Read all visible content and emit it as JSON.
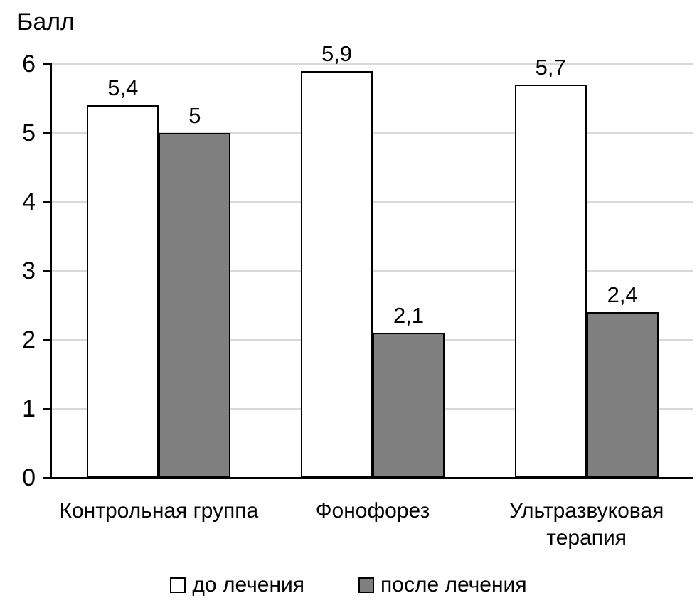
{
  "chart_data": {
    "type": "bar",
    "title": "",
    "ylabel": "Балл",
    "xlabel": "",
    "ylim": [
      0,
      6
    ],
    "yticks": [
      0,
      1,
      2,
      3,
      4,
      5,
      6
    ],
    "grid": true,
    "legend_position": "bottom",
    "categories": [
      "Контрольная группа",
      "Фонофорез",
      "Ультразвуковая терапия"
    ],
    "series": [
      {
        "key": "before-treatment",
        "name": "до лечения",
        "values": [
          5.4,
          5.9,
          5.7
        ],
        "value_labels": [
          "5,4",
          "5,9",
          "5,7"
        ],
        "fill": "#ffffff"
      },
      {
        "key": "after-treatment",
        "name": "после лечения",
        "values": [
          5.0,
          2.1,
          2.4
        ],
        "value_labels": [
          "5",
          "2,1",
          "2,4"
        ],
        "fill": "#7f7f7f"
      }
    ]
  },
  "colors": {
    "background": "#ffffff",
    "text": "#000000",
    "axis": "#000000",
    "gridline": "#d9d9d9",
    "bar_border": "#000000"
  }
}
